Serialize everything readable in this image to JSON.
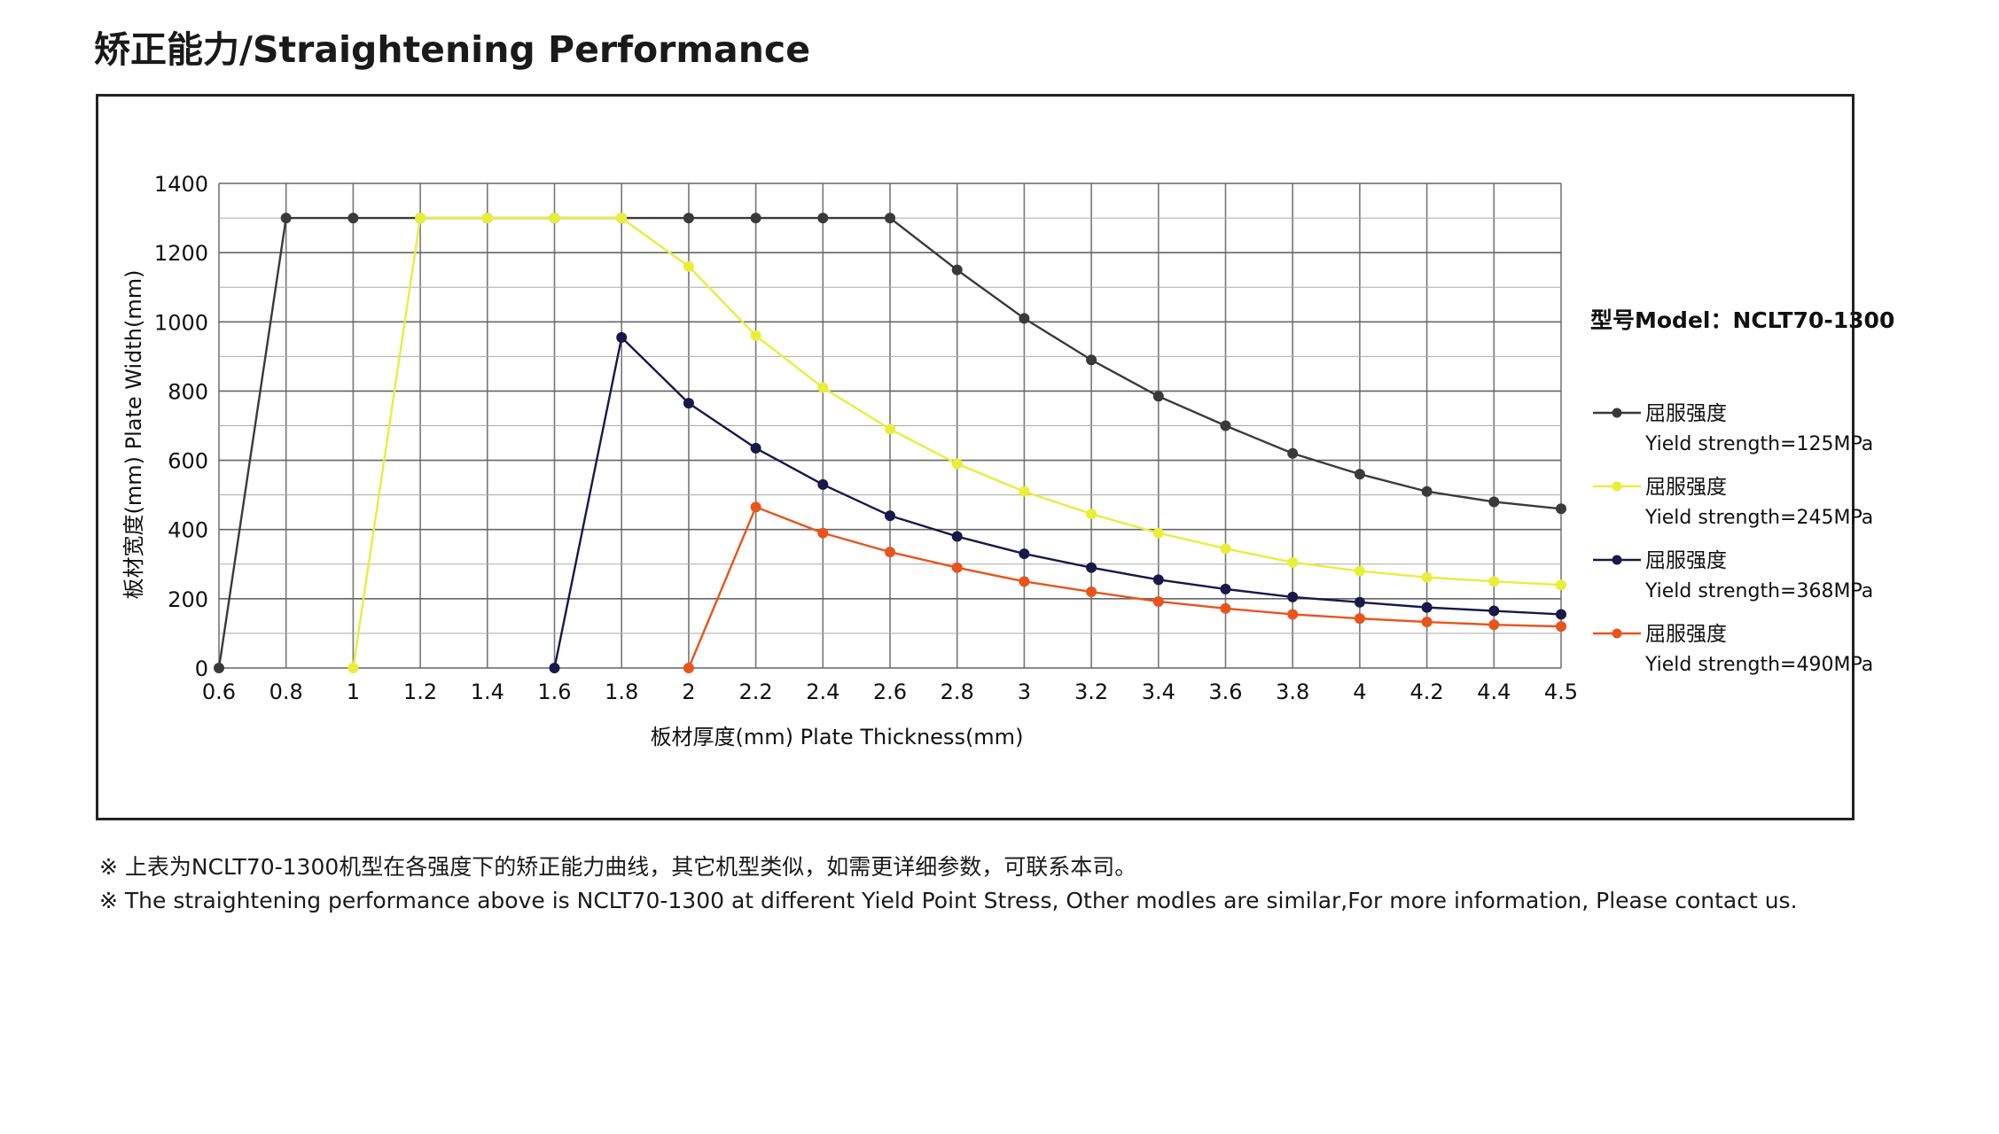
{
  "page": {
    "title": "矫正能力/Straightening Performance",
    "model_label": "型号Model：NCLT70-1300",
    "note_cn": "※ 上表为NCLT70-1300机型在各强度下的矫正能力曲线，其它机型类似，如需更详细参数，可联系本司。",
    "note_en": "※ The straightening performance above is NCLT70-1300 at different Yield Point Stress, Other modles are similar,For more information, Please contact us."
  },
  "chart_data": {
    "type": "line",
    "title": "",
    "xlabel": "板材厚度(mm) Plate Thickness(mm)",
    "ylabel": "板材宽度(mm)  Plate Width(mm)",
    "x_ticks": [
      "0.6",
      "0.8",
      "1",
      "1.2",
      "1.4",
      "1.6",
      "1.8",
      "2",
      "2.2",
      "2.4",
      "2.6",
      "2.8",
      "3",
      "3.2",
      "3.4",
      "3.6",
      "3.8",
      "4",
      "4.2",
      "4.4",
      "4.5"
    ],
    "y_ticks": [
      "0",
      "200",
      "400",
      "600",
      "800",
      "1000",
      "1200",
      "1400"
    ],
    "ylim": [
      0,
      1400
    ],
    "grid": true,
    "legend_position": "right",
    "series": [
      {
        "name_cn": "屈服强度",
        "name": "Yield strength=125MPa",
        "color": "#3a3a3a",
        "points": [
          [
            0.6,
            0
          ],
          [
            0.8,
            1300
          ],
          [
            1,
            1300
          ],
          [
            1.2,
            1300
          ],
          [
            1.4,
            1300
          ],
          [
            1.6,
            1300
          ],
          [
            1.8,
            1300
          ],
          [
            2,
            1300
          ],
          [
            2.2,
            1300
          ],
          [
            2.4,
            1300
          ],
          [
            2.6,
            1300
          ],
          [
            2.8,
            1150
          ],
          [
            3,
            1010
          ],
          [
            3.2,
            890
          ],
          [
            3.4,
            785
          ],
          [
            3.6,
            700
          ],
          [
            3.8,
            620
          ],
          [
            4,
            560
          ],
          [
            4.2,
            510
          ],
          [
            4.4,
            480
          ],
          [
            4.5,
            460
          ]
        ]
      },
      {
        "name_cn": "屈服强度",
        "name": "Yield strength=245MPa",
        "color": "#e8ee3a",
        "points": [
          [
            1,
            0
          ],
          [
            1.2,
            1300
          ],
          [
            1.4,
            1300
          ],
          [
            1.6,
            1300
          ],
          [
            1.8,
            1300
          ],
          [
            2,
            1160
          ],
          [
            2.2,
            960
          ],
          [
            2.4,
            810
          ],
          [
            2.6,
            690
          ],
          [
            2.8,
            590
          ],
          [
            3,
            510
          ],
          [
            3.2,
            445
          ],
          [
            3.4,
            390
          ],
          [
            3.6,
            345
          ],
          [
            3.8,
            305
          ],
          [
            4,
            280
          ],
          [
            4.2,
            262
          ],
          [
            4.4,
            250
          ],
          [
            4.5,
            240
          ]
        ]
      },
      {
        "name_cn": "屈服强度",
        "name": "Yield strength=368MPa",
        "color": "#18184a",
        "points": [
          [
            1.6,
            0
          ],
          [
            1.8,
            955
          ],
          [
            2,
            765
          ],
          [
            2.2,
            635
          ],
          [
            2.4,
            530
          ],
          [
            2.6,
            440
          ],
          [
            2.8,
            380
          ],
          [
            3,
            330
          ],
          [
            3.2,
            290
          ],
          [
            3.4,
            255
          ],
          [
            3.6,
            228
          ],
          [
            3.8,
            205
          ],
          [
            4,
            190
          ],
          [
            4.2,
            175
          ],
          [
            4.4,
            165
          ],
          [
            4.5,
            155
          ]
        ]
      },
      {
        "name_cn": "屈服强度",
        "name": "Yield strength=490MPa",
        "color": "#e8541c",
        "points": [
          [
            2,
            0
          ],
          [
            2.2,
            465
          ],
          [
            2.4,
            390
          ],
          [
            2.6,
            335
          ],
          [
            2.8,
            290
          ],
          [
            3,
            250
          ],
          [
            3.2,
            220
          ],
          [
            3.4,
            192
          ],
          [
            3.6,
            172
          ],
          [
            3.8,
            155
          ],
          [
            4,
            143
          ],
          [
            4.2,
            133
          ],
          [
            4.4,
            125
          ],
          [
            4.5,
            120
          ]
        ]
      }
    ]
  }
}
